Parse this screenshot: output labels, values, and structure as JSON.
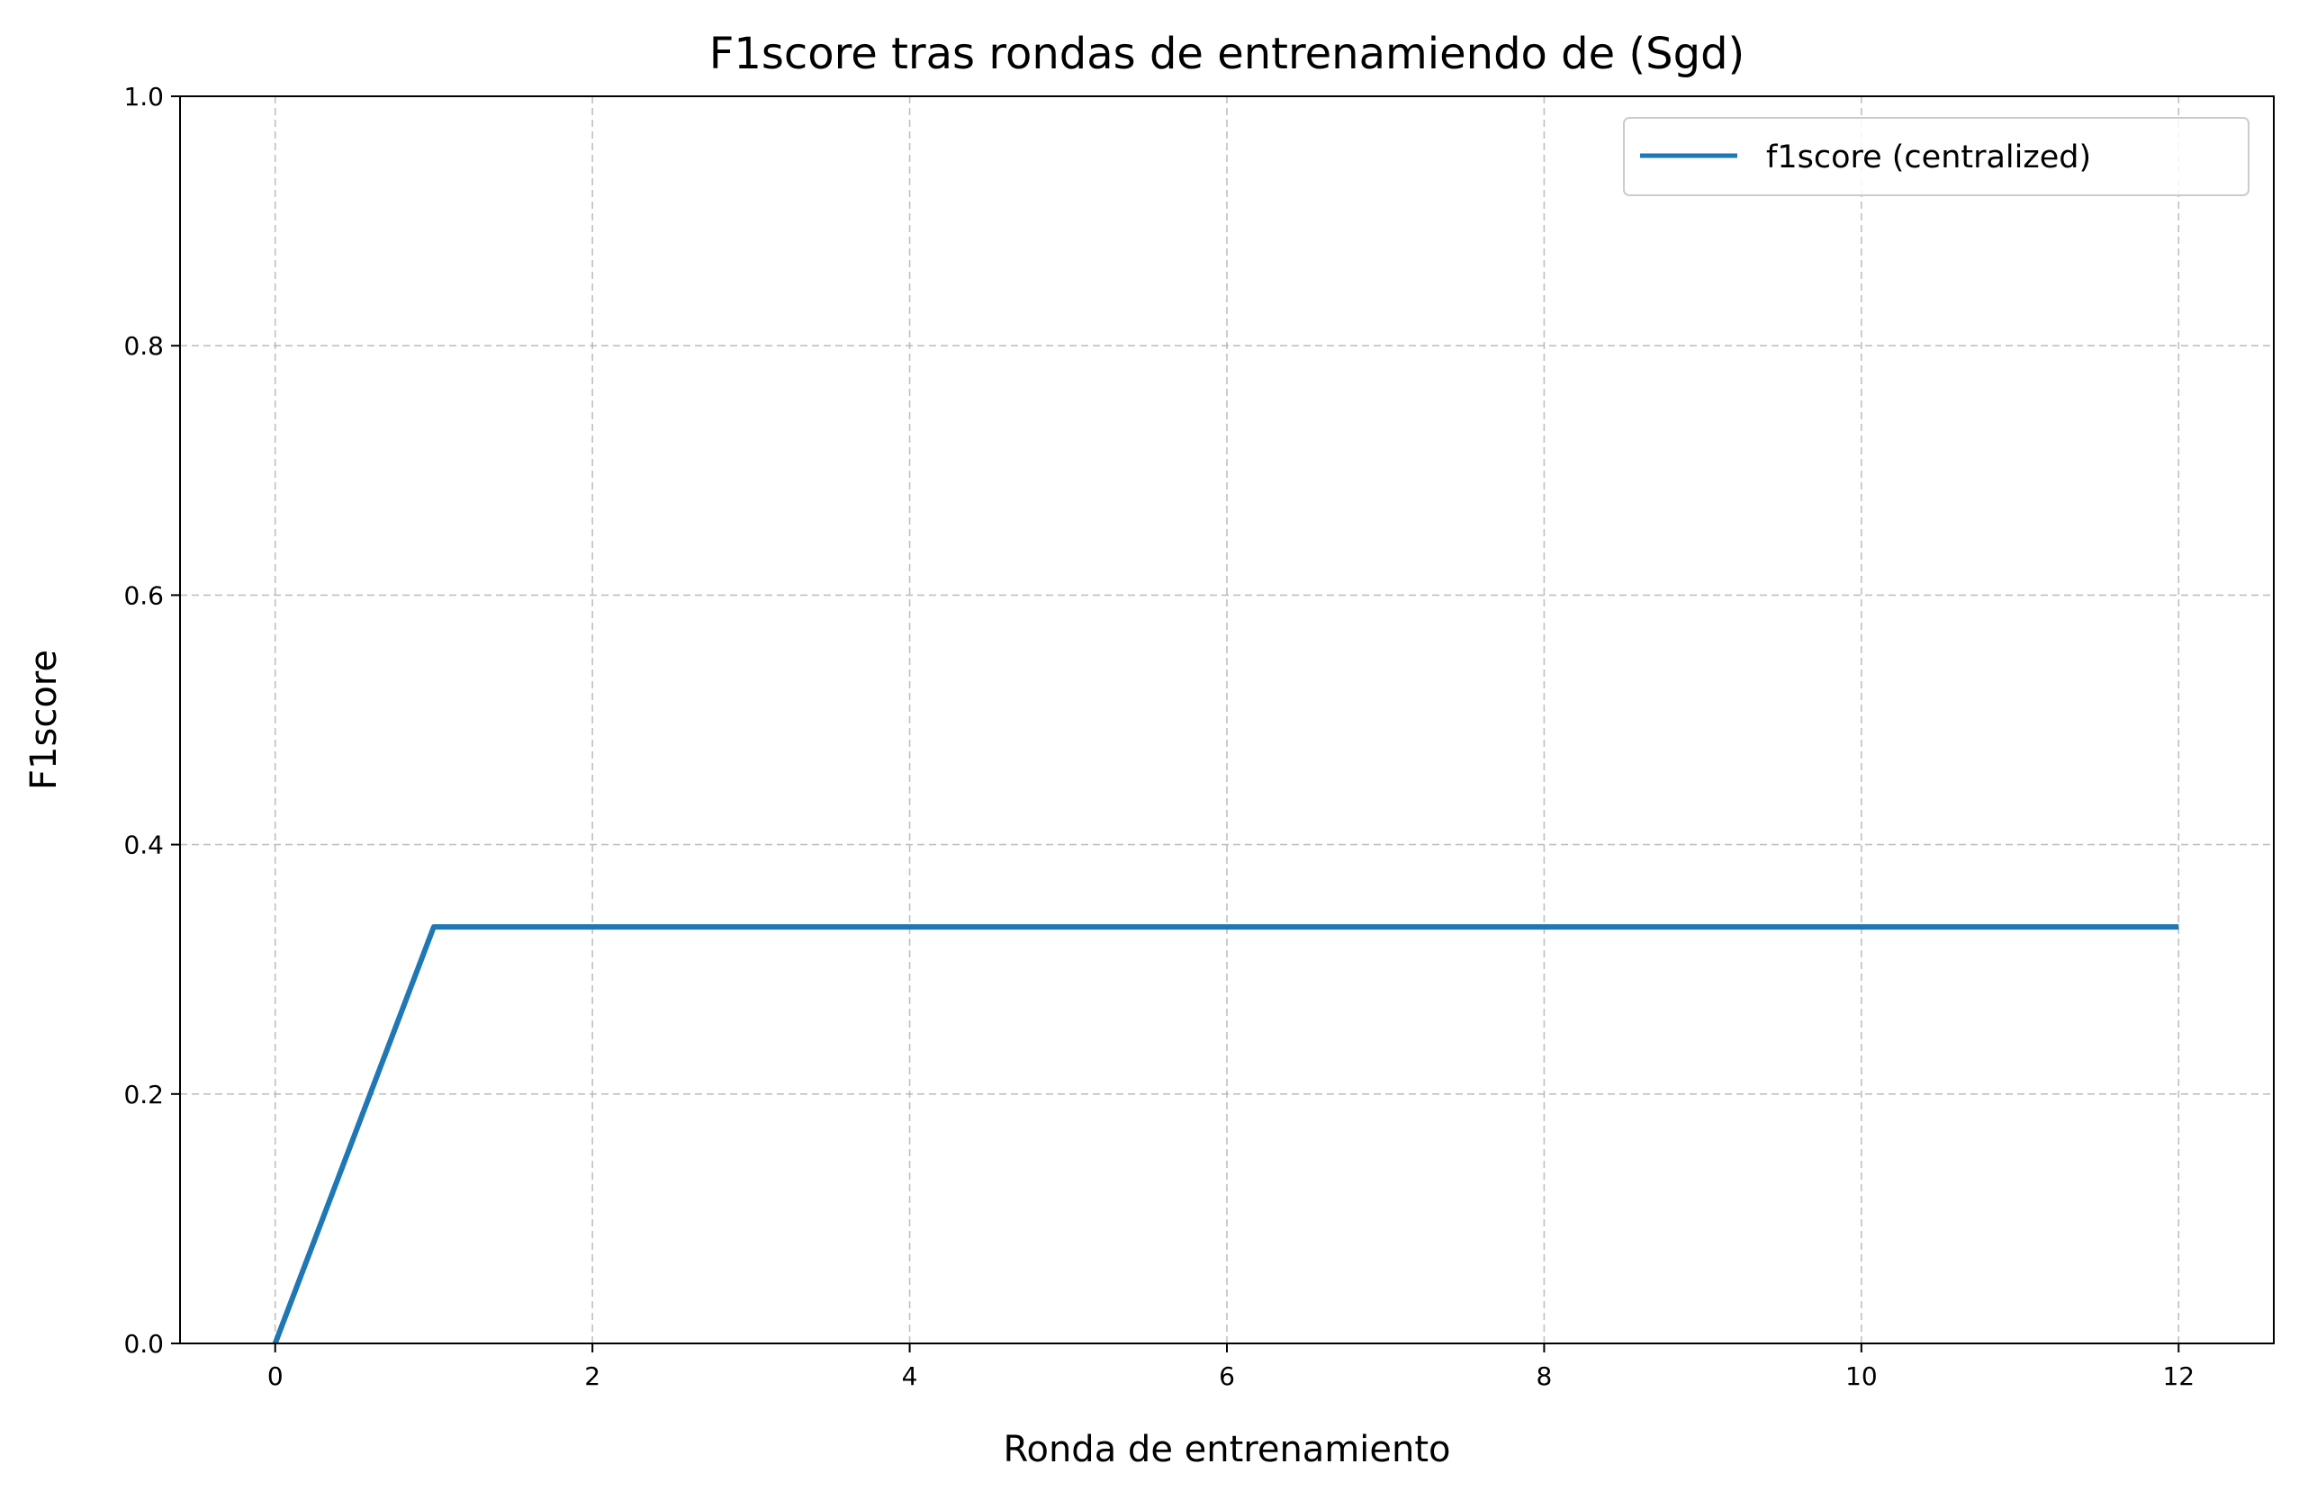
{
  "chart_data": {
    "type": "line",
    "title": "F1score tras rondas de entrenamiendo de (Sgd)",
    "xlabel": "Ronda de entrenamiento",
    "ylabel": "F1score",
    "xlim": [
      -0.6,
      12.6
    ],
    "ylim": [
      0.0,
      1.0
    ],
    "xticks": [
      0,
      2,
      4,
      6,
      8,
      10,
      12
    ],
    "xtick_labels": [
      "0",
      "2",
      "4",
      "6",
      "8",
      "10",
      "12"
    ],
    "yticks": [
      0.0,
      0.2,
      0.4,
      0.6,
      0.8,
      1.0
    ],
    "ytick_labels": [
      "0.0",
      "0.2",
      "0.4",
      "0.6",
      "0.8",
      "1.0"
    ],
    "grid": true,
    "legend_position": "top-right",
    "series": [
      {
        "name": "f1score (centralized)",
        "color": "#1f77b4",
        "x": [
          0,
          1,
          2,
          3,
          4,
          5,
          6,
          7,
          8,
          9,
          10,
          11,
          12
        ],
        "y": [
          0.0,
          0.334,
          0.334,
          0.334,
          0.334,
          0.334,
          0.334,
          0.334,
          0.334,
          0.334,
          0.334,
          0.334,
          0.334
        ]
      }
    ]
  }
}
